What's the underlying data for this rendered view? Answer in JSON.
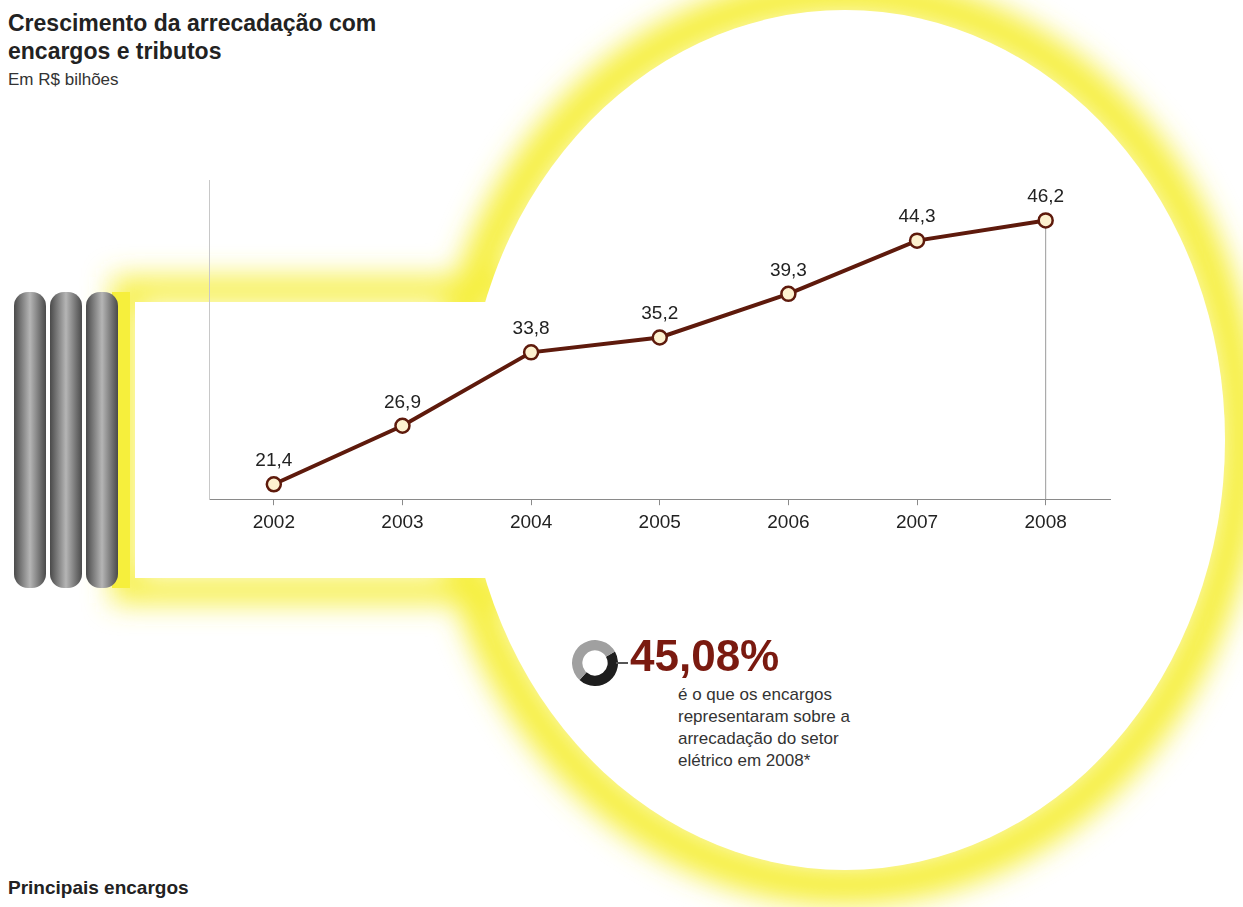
{
  "chart_data": {
    "type": "line",
    "title": "Crescimento da arrecadação com encargos e tributos",
    "subtitle": "Em R$ bilhões",
    "categories": [
      "2002",
      "2003",
      "2004",
      "2005",
      "2006",
      "2007",
      "2008"
    ],
    "values": [
      21.4,
      26.9,
      33.8,
      35.2,
      39.3,
      44.3,
      46.2
    ],
    "value_labels": [
      "21,4",
      "26,9",
      "33,8",
      "35,2",
      "39,3",
      "44,3",
      "46,2"
    ],
    "color": "#5e1a0c",
    "marker": "circle",
    "ylim": [
      20,
      50
    ],
    "grid": false,
    "tick_labels": "x",
    "data_labels": true,
    "annotation": {
      "value": 45.08,
      "label": "45,08%",
      "text": "é o que os encargos representaram sobre a arrecadação do setor elétrico em 2008*"
    },
    "section_heading": "Principais encargos"
  }
}
